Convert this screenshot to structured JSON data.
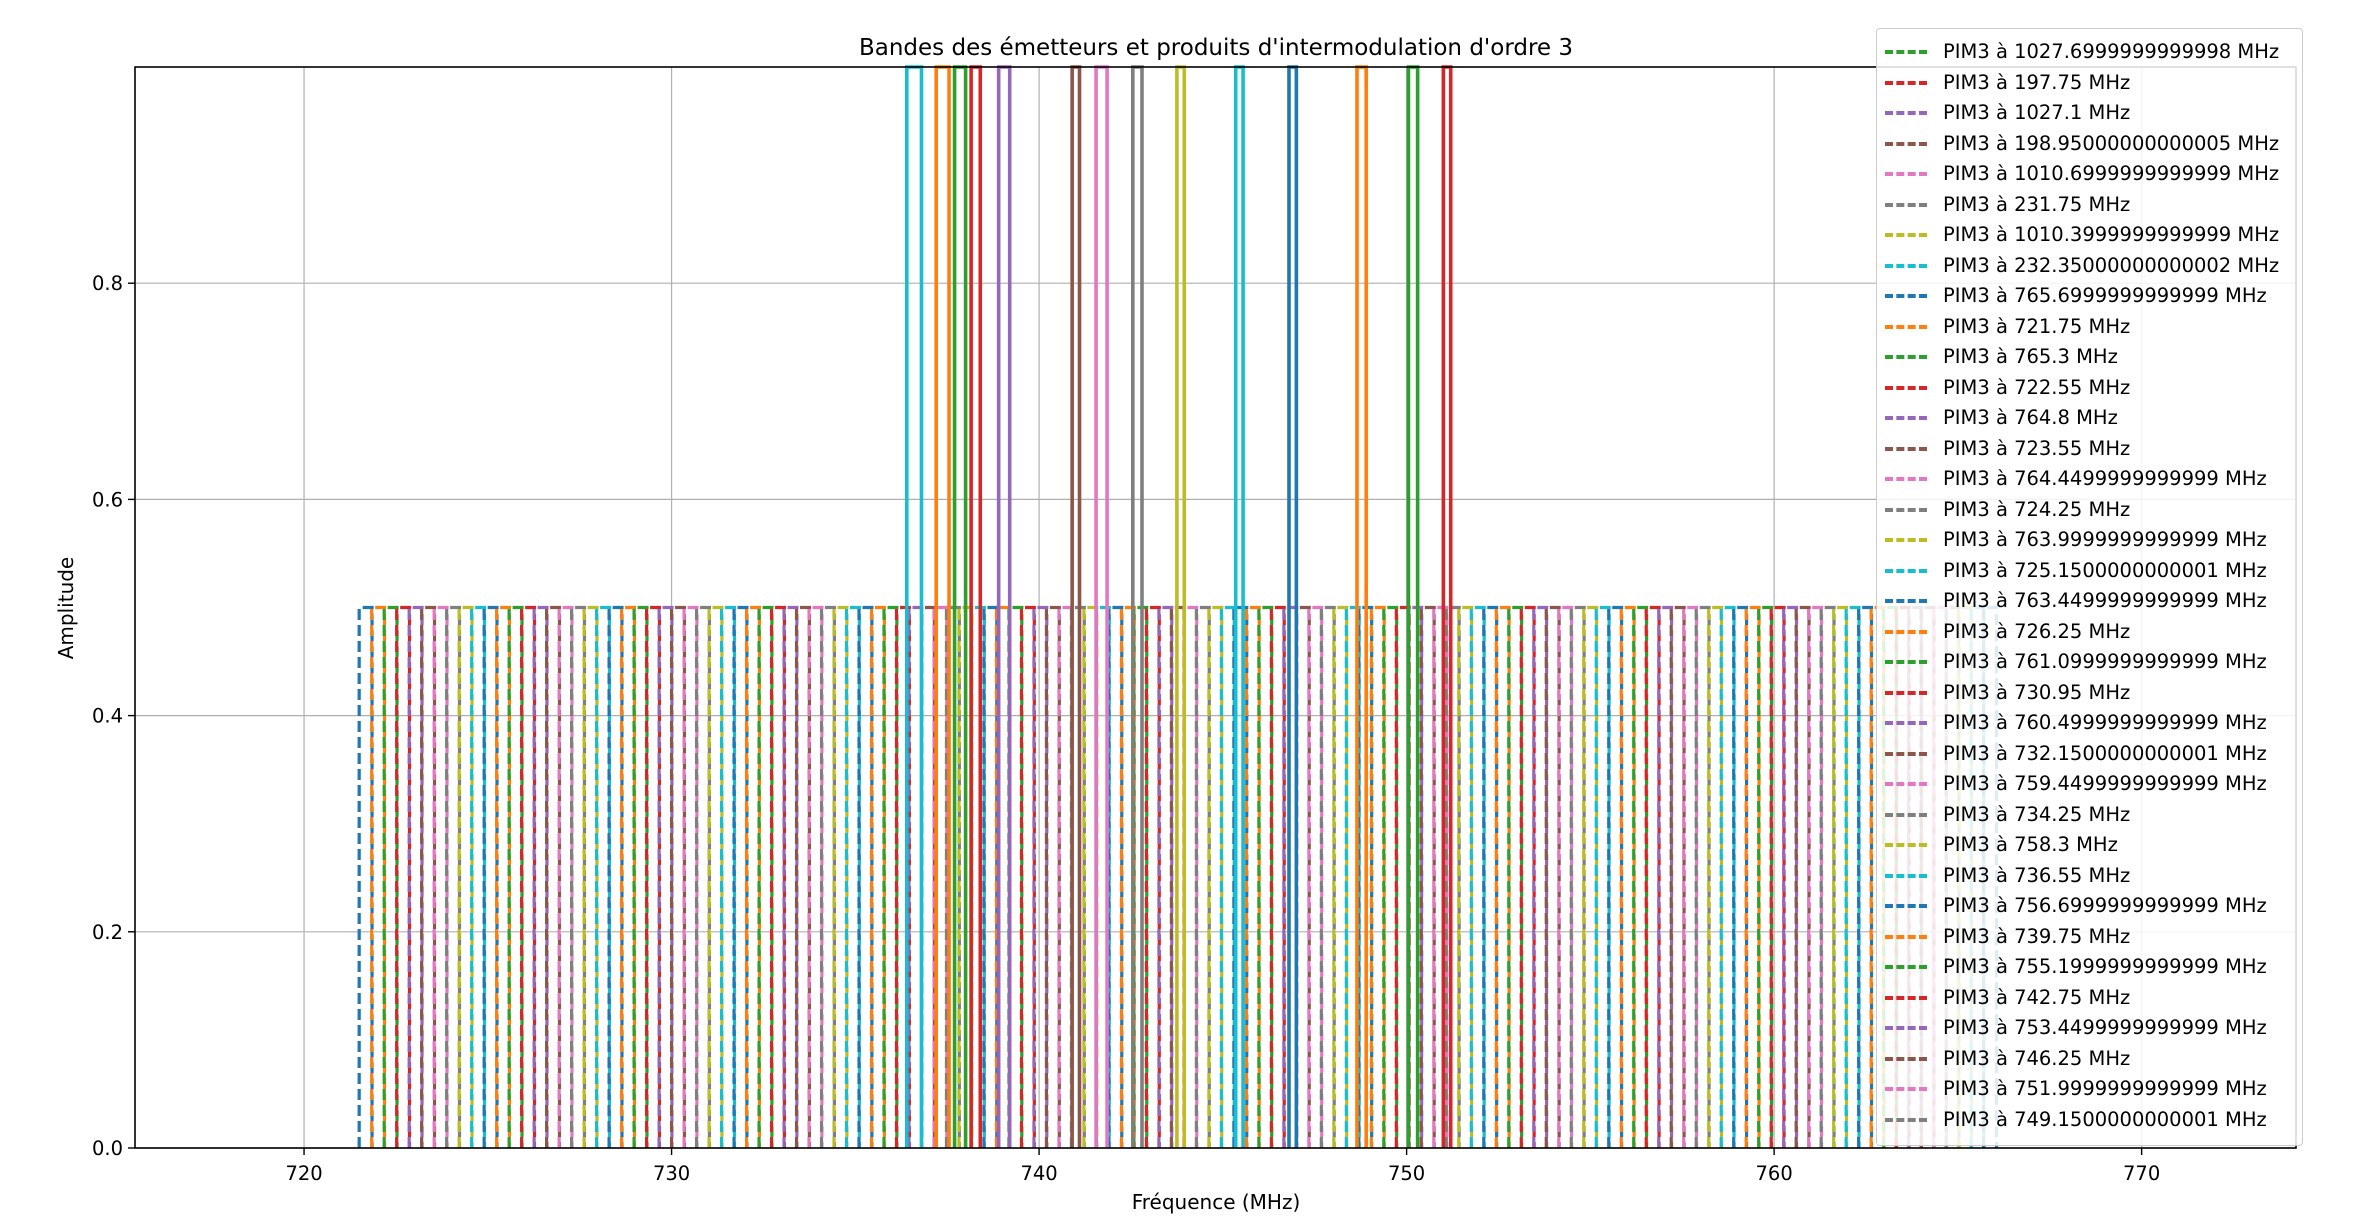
{
  "chart_data": {
    "type": "line",
    "title": "Bandes des émetteurs et produits d'intermodulation d'ordre 3",
    "xlabel": "Fréquence (MHz)",
    "ylabel": "Amplitude",
    "xlim": [
      715.4,
      774.2
    ],
    "ylim": [
      0,
      1
    ],
    "grid": true,
    "legend_position": "top-right",
    "x_ticks": [
      "720",
      "730",
      "740",
      "750",
      "760",
      "770"
    ],
    "x_tick_values": [
      720,
      730,
      740,
      750,
      760,
      770
    ],
    "y_ticks": [
      "0.0",
      "0.2",
      "0.4",
      "0.6",
      "0.8"
    ],
    "y_tick_values": [
      0.0,
      0.2,
      0.4,
      0.6,
      0.8
    ],
    "color_cycle": [
      "#1f77b4",
      "#ff7f0e",
      "#2ca02c",
      "#d62728",
      "#9467bd",
      "#8c564b",
      "#e377c2",
      "#7f7f7f",
      "#bcbd22",
      "#17becf"
    ],
    "emitters": {
      "amplitude": 1,
      "style": "solid",
      "bands": [
        {
          "start": 736.4,
          "end": 736.8,
          "color": "#17becf"
        },
        {
          "start": 737.2,
          "end": 737.55,
          "color": "#ff7f0e"
        },
        {
          "start": 737.7,
          "end": 738.0,
          "color": "#2ca02c"
        },
        {
          "start": 738.15,
          "end": 738.4,
          "color": "#d62728"
        },
        {
          "start": 738.9,
          "end": 739.2,
          "color": "#9467bd"
        },
        {
          "start": 740.9,
          "end": 741.1,
          "color": "#8c564b"
        },
        {
          "start": 741.55,
          "end": 741.85,
          "color": "#e377c2"
        },
        {
          "start": 742.55,
          "end": 742.8,
          "color": "#7f7f7f"
        },
        {
          "start": 743.75,
          "end": 743.95,
          "color": "#bcbd22"
        },
        {
          "start": 745.35,
          "end": 745.55,
          "color": "#17becf"
        },
        {
          "start": 746.8,
          "end": 747.0,
          "color": "#1f77b4"
        },
        {
          "start": 748.65,
          "end": 748.9,
          "color": "#ff7f0e"
        },
        {
          "start": 750.05,
          "end": 750.3,
          "color": "#2ca02c"
        },
        {
          "start": 751.0,
          "end": 751.2,
          "color": "#d62728"
        }
      ]
    },
    "pim3": {
      "amplitude": 0.5,
      "style": "dashed",
      "x_start": 721.5,
      "x_end": 766.0,
      "pair_offset": 0.35,
      "step": 0.34
    },
    "series": [
      {
        "name": "PIM3 à 1027.6999999999998 MHz",
        "color": "#2ca02c"
      },
      {
        "name": "PIM3 à 197.75 MHz",
        "color": "#d62728"
      },
      {
        "name": "PIM3 à 1027.1 MHz",
        "color": "#9467bd"
      },
      {
        "name": "PIM3 à 198.95000000000005 MHz",
        "color": "#8c564b"
      },
      {
        "name": "PIM3 à 1010.6999999999999 MHz",
        "color": "#e377c2"
      },
      {
        "name": "PIM3 à 231.75 MHz",
        "color": "#7f7f7f"
      },
      {
        "name": "PIM3 à 1010.3999999999999 MHz",
        "color": "#bcbd22"
      },
      {
        "name": "PIM3 à 232.35000000000002 MHz",
        "color": "#17becf"
      },
      {
        "name": "PIM3 à 765.6999999999999 MHz",
        "color": "#1f77b4"
      },
      {
        "name": "PIM3 à 721.75 MHz",
        "color": "#ff7f0e"
      },
      {
        "name": "PIM3 à 765.3 MHz",
        "color": "#2ca02c"
      },
      {
        "name": "PIM3 à 722.55 MHz",
        "color": "#d62728"
      },
      {
        "name": "PIM3 à 764.8 MHz",
        "color": "#9467bd"
      },
      {
        "name": "PIM3 à 723.55 MHz",
        "color": "#8c564b"
      },
      {
        "name": "PIM3 à 764.4499999999999 MHz",
        "color": "#e377c2"
      },
      {
        "name": "PIM3 à 724.25 MHz",
        "color": "#7f7f7f"
      },
      {
        "name": "PIM3 à 763.9999999999999 MHz",
        "color": "#bcbd22"
      },
      {
        "name": "PIM3 à 725.1500000000001 MHz",
        "color": "#17becf"
      },
      {
        "name": "PIM3 à 763.4499999999999 MHz",
        "color": "#1f77b4"
      },
      {
        "name": "PIM3 à 726.25 MHz",
        "color": "#ff7f0e"
      },
      {
        "name": "PIM3 à 761.0999999999999 MHz",
        "color": "#2ca02c"
      },
      {
        "name": "PIM3 à 730.95 MHz",
        "color": "#d62728"
      },
      {
        "name": "PIM3 à 760.4999999999999 MHz",
        "color": "#9467bd"
      },
      {
        "name": "PIM3 à 732.1500000000001 MHz",
        "color": "#8c564b"
      },
      {
        "name": "PIM3 à 759.4499999999999 MHz",
        "color": "#e377c2"
      },
      {
        "name": "PIM3 à 734.25 MHz",
        "color": "#7f7f7f"
      },
      {
        "name": "PIM3 à 758.3 MHz",
        "color": "#bcbd22"
      },
      {
        "name": "PIM3 à 736.55 MHz",
        "color": "#17becf"
      },
      {
        "name": "PIM3 à 756.6999999999999 MHz",
        "color": "#1f77b4"
      },
      {
        "name": "PIM3 à 739.75 MHz",
        "color": "#ff7f0e"
      },
      {
        "name": "PIM3 à 755.1999999999999 MHz",
        "color": "#2ca02c"
      },
      {
        "name": "PIM3 à 742.75 MHz",
        "color": "#d62728"
      },
      {
        "name": "PIM3 à 753.4499999999999 MHz",
        "color": "#9467bd"
      },
      {
        "name": "PIM3 à 746.25 MHz",
        "color": "#8c564b"
      },
      {
        "name": "PIM3 à 751.9999999999999 MHz",
        "color": "#e377c2"
      },
      {
        "name": "PIM3 à 749.1500000000001 MHz",
        "color": "#7f7f7f"
      }
    ]
  }
}
